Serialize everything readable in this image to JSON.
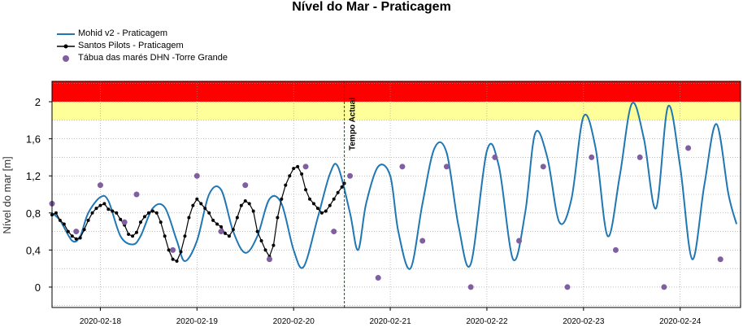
{
  "chart_data": {
    "type": "line",
    "title": "Nível do Mar - Praticagem",
    "xlabel": "",
    "ylabel": "Nível do mar [m]",
    "ylim": [
      -0.22,
      2.22
    ],
    "yticks": [
      "0",
      "0,4",
      "0,8",
      "1,2",
      "1,6",
      "2"
    ],
    "ytick_values": [
      0,
      0.4,
      0.8,
      1.2,
      1.6,
      2.0
    ],
    "xlim": [
      "2020-02-17 12:00",
      "2020-02-24 15:00"
    ],
    "xticks": [
      "2020-02-18",
      "2020-02-19",
      "2020-02-20",
      "2020-02-21",
      "2020-02-22",
      "2020-02-23",
      "2020-02-24"
    ],
    "grid": true,
    "legend_placement": "top-left",
    "threshold_bands": [
      {
        "from": 1.8,
        "to": 2.0,
        "color": "#FFFF99"
      },
      {
        "from": 2.0,
        "to": 2.22,
        "color": "#FF0000"
      }
    ],
    "current_time": {
      "label": "Tempo Actual",
      "x": "2020-02-20 12:36"
    },
    "series": [
      {
        "name": "Mohid v2 - Praticagem",
        "color": "#1F77B4",
        "style": "line",
        "x": [
          "2020-02-17 12:00",
          "2020-02-17 14:00",
          "2020-02-17 17:00",
          "2020-02-17 19:00",
          "2020-02-17 21:00",
          "2020-02-18 00:00",
          "2020-02-18 02:00",
          "2020-02-18 05:00",
          "2020-02-18 08:00",
          "2020-02-18 10:00",
          "2020-02-18 13:00",
          "2020-02-18 16:00",
          "2020-02-18 19:00",
          "2020-02-18 21:00",
          "2020-02-19 00:00",
          "2020-02-19 03:00",
          "2020-02-19 06:00",
          "2020-02-19 09:00",
          "2020-02-19 12:00",
          "2020-02-19 15:00",
          "2020-02-19 18:00",
          "2020-02-19 21:00",
          "2020-02-20 00:00",
          "2020-02-20 02:30",
          "2020-02-20 06:00",
          "2020-02-20 09:00",
          "2020-02-20 11:00",
          "2020-02-20 14:00",
          "2020-02-20 16:00",
          "2020-02-20 18:00",
          "2020-02-20 21:00",
          "2020-02-21 00:00",
          "2020-02-21 02:00",
          "2020-02-21 05:00",
          "2020-02-21 08:00",
          "2020-02-21 11:00",
          "2020-02-21 14:00",
          "2020-02-21 17:00",
          "2020-02-21 20:00",
          "2020-02-22 00:00",
          "2020-02-22 03:00",
          "2020-02-22 06:30",
          "2020-02-22 09:30",
          "2020-02-22 12:00",
          "2020-02-22 15:00",
          "2020-02-22 18:00",
          "2020-02-22 21:00",
          "2020-02-23 00:00",
          "2020-02-23 03:00",
          "2020-02-23 06:00",
          "2020-02-23 09:00",
          "2020-02-23 12:00",
          "2020-02-23 15:00",
          "2020-02-23 18:00",
          "2020-02-23 21:00",
          "2020-02-24 00:00",
          "2020-02-24 03:00",
          "2020-02-24 06:00",
          "2020-02-24 09:00",
          "2020-02-24 12:00",
          "2020-02-24 14:00"
        ],
        "y": [
          0.8,
          0.72,
          0.5,
          0.55,
          0.8,
          0.97,
          0.93,
          0.55,
          0.46,
          0.55,
          0.85,
          0.86,
          0.5,
          0.28,
          0.5,
          1.0,
          1.05,
          0.6,
          0.37,
          0.55,
          0.95,
          0.9,
          0.4,
          0.22,
          0.75,
          1.22,
          1.3,
          0.8,
          0.4,
          0.9,
          1.3,
          1.2,
          0.6,
          0.2,
          0.9,
          1.5,
          1.45,
          0.65,
          0.25,
          1.47,
          1.3,
          0.3,
          0.8,
          1.66,
          1.4,
          0.7,
          0.95,
          1.84,
          1.5,
          0.55,
          1.2,
          1.98,
          1.6,
          0.85,
          1.95,
          1.3,
          0.3,
          1.1,
          1.76,
          1.0,
          0.68
        ]
      },
      {
        "name": "Santos Pilots - Praticagem",
        "color": "#000000",
        "style": "line-markers",
        "x": [
          "2020-02-17 12:00",
          "2020-02-17 13:00",
          "2020-02-17 14:00",
          "2020-02-17 15:00",
          "2020-02-17 16:00",
          "2020-02-17 17:00",
          "2020-02-17 18:00",
          "2020-02-17 19:00",
          "2020-02-17 20:00",
          "2020-02-17 21:00",
          "2020-02-17 22:00",
          "2020-02-17 23:00",
          "2020-02-18 00:00",
          "2020-02-18 01:00",
          "2020-02-18 02:00",
          "2020-02-18 03:00",
          "2020-02-18 04:00",
          "2020-02-18 05:00",
          "2020-02-18 06:00",
          "2020-02-18 07:00",
          "2020-02-18 08:00",
          "2020-02-18 09:00",
          "2020-02-18 10:00",
          "2020-02-18 11:00",
          "2020-02-18 12:00",
          "2020-02-18 13:00",
          "2020-02-18 14:00",
          "2020-02-18 15:00",
          "2020-02-18 16:00",
          "2020-02-18 17:00",
          "2020-02-18 18:00",
          "2020-02-18 19:00",
          "2020-02-18 20:00",
          "2020-02-18 21:00",
          "2020-02-18 22:00",
          "2020-02-18 23:00",
          "2020-02-19 00:00",
          "2020-02-19 01:00",
          "2020-02-19 02:00",
          "2020-02-19 03:00",
          "2020-02-19 04:00",
          "2020-02-19 05:00",
          "2020-02-19 06:00",
          "2020-02-19 07:00",
          "2020-02-19 08:00",
          "2020-02-19 09:00",
          "2020-02-19 10:00",
          "2020-02-19 11:00",
          "2020-02-19 12:00",
          "2020-02-19 13:00",
          "2020-02-19 14:00",
          "2020-02-19 15:00",
          "2020-02-19 16:00",
          "2020-02-19 17:00",
          "2020-02-19 18:00",
          "2020-02-19 19:00",
          "2020-02-19 20:00",
          "2020-02-19 21:00",
          "2020-02-19 22:00",
          "2020-02-19 23:00",
          "2020-02-20 00:00",
          "2020-02-20 01:00",
          "2020-02-20 02:00",
          "2020-02-20 03:00",
          "2020-02-20 04:00",
          "2020-02-20 05:00",
          "2020-02-20 06:00",
          "2020-02-20 07:00",
          "2020-02-20 08:00",
          "2020-02-20 09:00",
          "2020-02-20 10:00",
          "2020-02-20 11:00",
          "2020-02-20 12:00",
          "2020-02-20 12:36"
        ],
        "y": [
          0.78,
          0.8,
          0.72,
          0.68,
          0.6,
          0.55,
          0.52,
          0.53,
          0.62,
          0.72,
          0.8,
          0.85,
          0.88,
          0.9,
          0.84,
          0.82,
          0.8,
          0.73,
          0.67,
          0.57,
          0.55,
          0.59,
          0.7,
          0.76,
          0.8,
          0.82,
          0.8,
          0.7,
          0.55,
          0.4,
          0.3,
          0.28,
          0.38,
          0.55,
          0.75,
          0.88,
          0.95,
          0.9,
          0.85,
          0.8,
          0.72,
          0.68,
          0.65,
          0.58,
          0.55,
          0.62,
          0.75,
          0.88,
          0.93,
          0.9,
          0.82,
          0.6,
          0.5,
          0.4,
          0.33,
          0.45,
          0.75,
          0.95,
          1.1,
          1.2,
          1.28,
          1.3,
          1.22,
          1.05,
          0.95,
          0.9,
          0.85,
          0.8,
          0.82,
          0.88,
          0.95,
          1.02,
          1.08,
          1.12
        ]
      },
      {
        "name": "Tábua das marés DHN -Torre Grande",
        "color": "#7F5FA0",
        "style": "markers",
        "x": [
          "2020-02-17 12:00",
          "2020-02-17 18:00",
          "2020-02-18 00:00",
          "2020-02-18 06:00",
          "2020-02-18 09:00",
          "2020-02-18 18:00",
          "2020-02-19 00:00",
          "2020-02-19 06:00",
          "2020-02-19 12:00",
          "2020-02-19 18:00",
          "2020-02-20 03:00",
          "2020-02-20 10:00",
          "2020-02-20 14:00",
          "2020-02-20 21:00",
          "2020-02-21 03:00",
          "2020-02-21 08:00",
          "2020-02-21 14:00",
          "2020-02-21 20:00",
          "2020-02-22 02:00",
          "2020-02-22 08:00",
          "2020-02-22 14:00",
          "2020-02-22 20:00",
          "2020-02-23 02:00",
          "2020-02-23 08:00",
          "2020-02-23 14:00",
          "2020-02-23 20:00",
          "2020-02-24 02:00",
          "2020-02-24 10:00"
        ],
        "y": [
          0.9,
          0.6,
          1.1,
          0.7,
          1.0,
          0.4,
          1.2,
          0.6,
          1.1,
          0.3,
          1.3,
          0.6,
          1.2,
          0.1,
          1.3,
          0.5,
          1.3,
          0.0,
          1.4,
          0.5,
          1.3,
          0.0,
          1.4,
          0.4,
          1.4,
          0.0,
          1.5,
          0.3
        ]
      }
    ]
  }
}
